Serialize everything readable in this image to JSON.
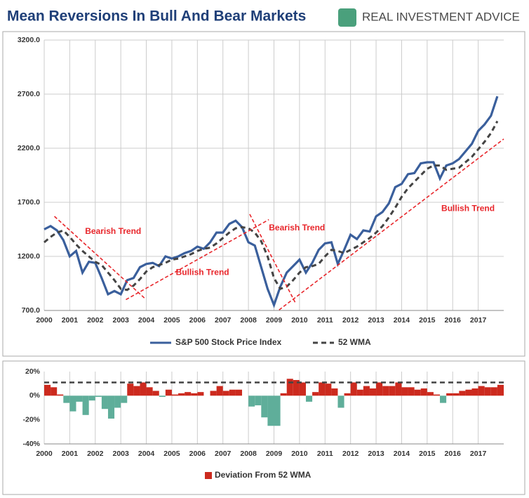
{
  "brand": "REAL INVESTMENT ADVICE",
  "chart_data": [
    {
      "type": "line",
      "title": "Mean Reversions In Bull And Bear Markets",
      "xlim": [
        2000,
        2018
      ],
      "xticks": [
        2000,
        2001,
        2002,
        2003,
        2004,
        2005,
        2006,
        2007,
        2008,
        2009,
        2010,
        2011,
        2012,
        2013,
        2014,
        2015,
        2016,
        2017
      ],
      "ylim": [
        700,
        3200
      ],
      "yticks": [
        {
          "value": 700,
          "label": "700.0"
        },
        {
          "value": 1200,
          "label": "1200.0"
        },
        {
          "value": 1700,
          "label": "1700.0"
        },
        {
          "value": 2200,
          "label": "2200.0"
        },
        {
          "value": 2700,
          "label": "2700.0"
        },
        {
          "value": 3200,
          "label": "3200.0"
        }
      ],
      "grid": true,
      "x": [
        2000,
        2000.25,
        2000.5,
        2000.75,
        2001,
        2001.25,
        2001.5,
        2001.75,
        2002,
        2002.25,
        2002.5,
        2002.75,
        2003,
        2003.25,
        2003.5,
        2003.75,
        2004,
        2004.25,
        2004.5,
        2004.75,
        2005,
        2005.25,
        2005.5,
        2005.75,
        2006,
        2006.25,
        2006.5,
        2006.75,
        2007,
        2007.25,
        2007.5,
        2007.75,
        2008,
        2008.25,
        2008.5,
        2008.75,
        2009,
        2009.25,
        2009.5,
        2009.75,
        2010,
        2010.25,
        2010.5,
        2010.75,
        2011,
        2011.25,
        2011.5,
        2011.75,
        2012,
        2012.25,
        2012.5,
        2012.75,
        2013,
        2013.25,
        2013.5,
        2013.75,
        2014,
        2014.25,
        2014.5,
        2014.75,
        2015,
        2015.25,
        2015.5,
        2015.75,
        2016,
        2016.25,
        2016.5,
        2016.75,
        2017,
        2017.25,
        2017.5,
        2017.75
      ],
      "series": [
        {
          "name": "S&P 500 Stock Price Index",
          "color": "#3a5f9c",
          "dashed": false,
          "values": [
            1450,
            1480,
            1440,
            1350,
            1200,
            1250,
            1050,
            1150,
            1140,
            1000,
            850,
            880,
            850,
            980,
            1000,
            1100,
            1130,
            1140,
            1110,
            1200,
            1180,
            1200,
            1230,
            1250,
            1290,
            1270,
            1330,
            1420,
            1420,
            1500,
            1530,
            1470,
            1330,
            1300,
            1100,
            900,
            750,
            920,
            1050,
            1110,
            1170,
            1050,
            1140,
            1260,
            1320,
            1330,
            1130,
            1260,
            1400,
            1360,
            1440,
            1430,
            1570,
            1610,
            1690,
            1840,
            1870,
            1960,
            1970,
            2060,
            2070,
            2070,
            1920,
            2040,
            2060,
            2100,
            2170,
            2240,
            2360,
            2420,
            2500,
            2680
          ]
        },
        {
          "name": "52 WMA",
          "color": "#444444",
          "dashed": true,
          "values": [
            1330,
            1380,
            1420,
            1440,
            1380,
            1310,
            1250,
            1200,
            1150,
            1120,
            1050,
            980,
            900,
            890,
            930,
            990,
            1060,
            1100,
            1120,
            1140,
            1170,
            1180,
            1200,
            1220,
            1250,
            1270,
            1280,
            1320,
            1370,
            1420,
            1460,
            1470,
            1460,
            1420,
            1340,
            1200,
            1000,
            900,
            920,
            980,
            1050,
            1100,
            1110,
            1130,
            1200,
            1260,
            1250,
            1230,
            1260,
            1290,
            1330,
            1370,
            1420,
            1480,
            1560,
            1650,
            1750,
            1830,
            1890,
            1950,
            2010,
            2040,
            2040,
            2000,
            2010,
            2020,
            2070,
            2120,
            2190,
            2260,
            2340,
            2450
          ]
        }
      ],
      "trend_color": "#e8262b",
      "annotations": [
        {
          "label": "Bearish Trend",
          "x": [
            2000.4,
            2003.95
          ],
          "y": [
            1570,
            810
          ],
          "label_x": 2002.7,
          "label_y": 1430
        },
        {
          "label": "Bullish Trend",
          "x": [
            2003.2,
            2008.8
          ],
          "y": [
            800,
            1540
          ],
          "label_x": 2006.2,
          "label_y": 1050
        },
        {
          "label": "Bearish Trend",
          "x": [
            2008.05,
            2009.85
          ],
          "y": [
            1590,
            765
          ],
          "label_x": 2009.9,
          "label_y": 1460
        },
        {
          "label": "Bullish Trend",
          "x": [
            2009.2,
            2018
          ],
          "y": [
            705,
            2285
          ],
          "label_x": 2016.6,
          "label_y": 1640
        }
      ]
    },
    {
      "type": "bar",
      "xlim": [
        2000,
        2018
      ],
      "xticks": [
        2000,
        2001,
        2002,
        2003,
        2004,
        2005,
        2006,
        2007,
        2008,
        2009,
        2010,
        2011,
        2012,
        2013,
        2014,
        2015,
        2016,
        2017
      ],
      "ylim": [
        -40,
        20
      ],
      "yticks": [
        {
          "value": 20,
          "label": "20%"
        },
        {
          "value": 0,
          "label": "0%"
        },
        {
          "value": -20,
          "label": "-20%"
        },
        {
          "value": -40,
          "label": "-40%"
        }
      ],
      "threshold": 11,
      "x": [
        2000,
        2000.25,
        2000.5,
        2000.75,
        2001,
        2001.25,
        2001.5,
        2001.75,
        2002,
        2002.25,
        2002.5,
        2002.75,
        2003,
        2003.25,
        2003.5,
        2003.75,
        2004,
        2004.25,
        2004.5,
        2004.75,
        2005,
        2005.25,
        2005.5,
        2005.75,
        2006,
        2006.25,
        2006.5,
        2006.75,
        2007,
        2007.25,
        2007.5,
        2007.75,
        2008,
        2008.25,
        2008.5,
        2008.75,
        2009,
        2009.25,
        2009.5,
        2009.75,
        2010,
        2010.25,
        2010.5,
        2010.75,
        2011,
        2011.25,
        2011.5,
        2011.75,
        2012,
        2012.25,
        2012.5,
        2012.75,
        2013,
        2013.25,
        2013.5,
        2013.75,
        2014,
        2014.25,
        2014.5,
        2014.75,
        2015,
        2015.25,
        2015.5,
        2015.75,
        2016,
        2016.25,
        2016.5,
        2016.75,
        2017,
        2017.25,
        2017.5,
        2017.75
      ],
      "series": [
        {
          "name": "Deviation From 52 WMA",
          "color": "#cc2a1e",
          "negative_color": "#5fae9a",
          "values": [
            9,
            7,
            1,
            -6,
            -13,
            -5,
            -16,
            -4,
            -1,
            -11,
            -19,
            -10,
            -6,
            10,
            8,
            11,
            7,
            4,
            -1,
            5,
            1,
            2,
            3,
            2,
            3,
            0,
            4,
            8,
            4,
            5,
            5,
            0,
            -9,
            -8,
            -18,
            -25,
            -25,
            2,
            14,
            13,
            11,
            -5,
            3,
            11,
            10,
            6,
            -10,
            2,
            11,
            5,
            8,
            6,
            11,
            8,
            8,
            11,
            7,
            7,
            5,
            6,
            3,
            1,
            -6,
            2,
            2,
            4,
            5,
            6,
            8,
            7,
            7,
            9
          ]
        }
      ]
    }
  ]
}
